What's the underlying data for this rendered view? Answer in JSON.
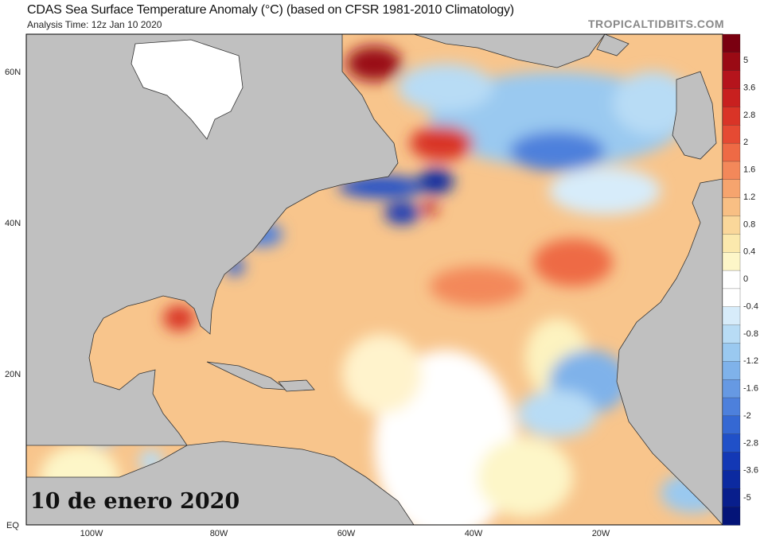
{
  "header": {
    "title": "CDAS Sea Surface Temperature Anomaly (°C) (based on CFSR 1981-2010 Climatology)",
    "subtitle": "Analysis Time: 12z Jan 10 2020",
    "brand": "TROPICALTIDBITS.COM"
  },
  "map": {
    "region": "North Atlantic",
    "lat_labels": [
      "60N",
      "40N",
      "20N",
      "EQ"
    ],
    "lon_labels": [
      "100W",
      "80W",
      "60W",
      "40W",
      "20W"
    ],
    "land_color": "#c0c0c0",
    "annotation": "10 de enero 2020"
  },
  "colorbar": {
    "unit": "°C",
    "labels": [
      "5",
      "3.6",
      "2.8",
      "2",
      "1.6",
      "1.2",
      "0.8",
      "0.4",
      "0",
      "-0.4",
      "-0.8",
      "-1.2",
      "-1.6",
      "-2",
      "-2.8",
      "-3.6",
      "-5"
    ],
    "colors": [
      "#7a0010",
      "#9a0a14",
      "#b5141c",
      "#c8201f",
      "#d93427",
      "#e54a33",
      "#ee6a45",
      "#f3885a",
      "#f6a46e",
      "#f8bf84",
      "#fad79a",
      "#fbe9ad",
      "#fdf6c8",
      "#ffffff",
      "#ffffff",
      "#d7ecfa",
      "#b8dcf5",
      "#9ac9f0",
      "#7fb2ea",
      "#6699e3",
      "#4d80dc",
      "#3568d3",
      "#2050c8",
      "#1338b5",
      "#0c2aa0",
      "#081e8c",
      "#041478"
    ]
  }
}
